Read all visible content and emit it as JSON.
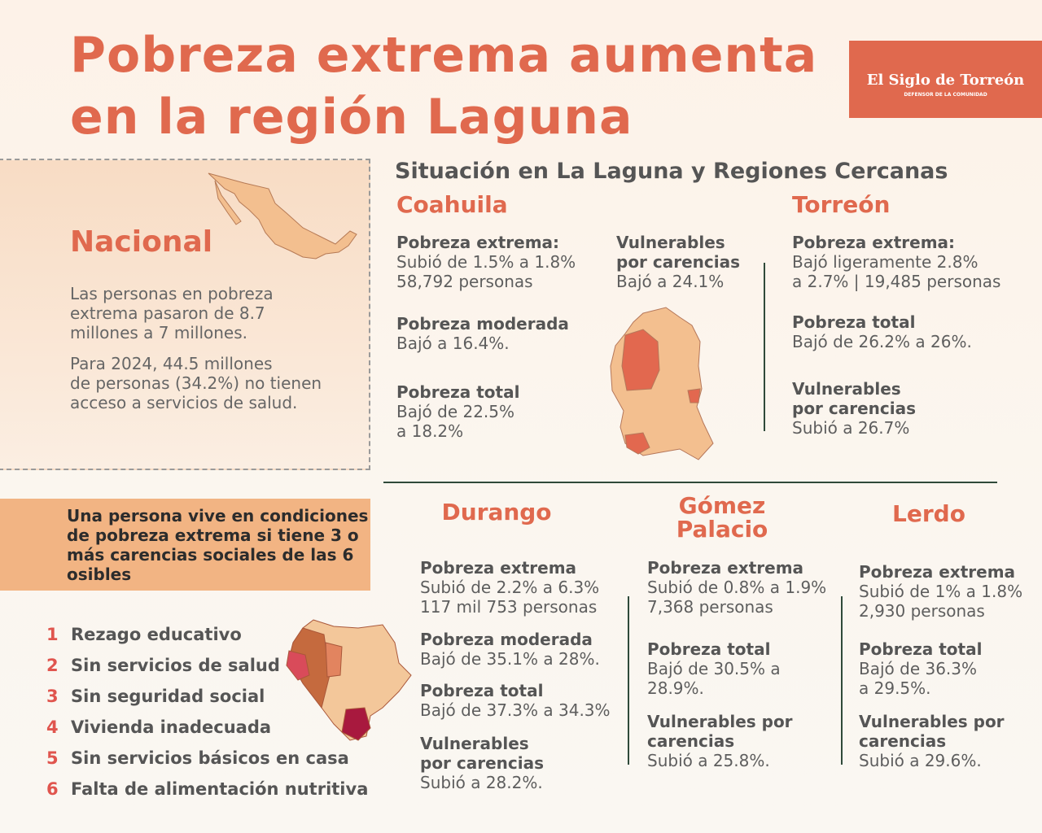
{
  "header": {
    "title": [
      "Pobreza extrema aumenta",
      "en la región Laguna"
    ],
    "logo": "El Siglo de Torreón",
    "logo_tagline": "DEFENSOR DE LA COMUNIDAD"
  },
  "nacional": {
    "title": "Nacional",
    "paragraphs": [
      [
        "Las personas en pobreza",
        "extrema pasaron de 8.7",
        "millones a 7 millones."
      ],
      [
        "Para 2024, 44.5 millones",
        "de personas (34.2%) no tienen",
        "acceso a servicios de salud."
      ]
    ]
  },
  "definition": [
    "Una persona vive en condiciones",
    "de pobreza extrema si tiene 3 o",
    "más carencias sociales de las 6",
    "osibles"
  ],
  "carencias": [
    {
      "number": "1",
      "label": "Rezago educativo"
    },
    {
      "number": "2",
      "label": "Sin servicios de salud"
    },
    {
      "number": "3",
      "label": "Sin seguridad social"
    },
    {
      "number": "4",
      "label": "Vivienda inadecuada"
    },
    {
      "number": "5",
      "label": "Sin servicios básicos en casa"
    },
    {
      "number": "6",
      "label": "Falta de alimentación nutritiva"
    }
  ],
  "section_title": "Situación en La Laguna y Regiones Cercanas",
  "regions": [
    {
      "name": [
        "Coahuila"
      ],
      "items": [
        {
          "title": [
            "Pobreza extrema:"
          ],
          "lines": [
            "Subió de 1.5% a 1.8%",
            "58,792 personas"
          ]
        },
        {
          "title": [
            "Pobreza moderada"
          ],
          "lines": [
            "Bajó a 16.4%."
          ]
        },
        {
          "title": [
            "Pobreza total"
          ],
          "lines": [
            "Bajó de 22.5%",
            "a 18.2%"
          ]
        },
        {
          "title": [
            "Vulnerables",
            "por carencias"
          ],
          "lines": [
            "Bajó a 24.1%"
          ]
        }
      ]
    },
    {
      "name": [
        "Torreón"
      ],
      "items": [
        {
          "title": [
            "Pobreza extrema:"
          ],
          "lines": [
            "Bajó ligeramente 2.8%",
            "a 2.7% | 19,485 personas"
          ]
        },
        {
          "title": [
            "Pobreza total"
          ],
          "lines": [
            "Bajó de 26.2% a 26%."
          ]
        },
        {
          "title": [
            "Vulnerables",
            "por carencias"
          ],
          "lines": [
            "Subió a 26.7%"
          ]
        }
      ]
    },
    {
      "name": [
        "Durango"
      ],
      "items": [
        {
          "title": [
            "Pobreza extrema"
          ],
          "lines": [
            "Subió de 2.2% a 6.3%",
            "117 mil 753 personas"
          ]
        },
        {
          "title": [
            "Pobreza moderada"
          ],
          "lines": [
            "Bajó de 35.1% a 28%."
          ]
        },
        {
          "title": [
            "Pobreza total"
          ],
          "lines": [
            "Bajó de 37.3% a 34.3%"
          ]
        },
        {
          "title": [
            "Vulnerables",
            "por carencias"
          ],
          "lines": [
            "Subió a 28.2%."
          ]
        }
      ]
    },
    {
      "name": [
        "Gómez",
        "Palacio"
      ],
      "items": [
        {
          "title": [
            "Pobreza extrema"
          ],
          "lines": [
            "Subió de 0.8% a 1.9%",
            "7,368 personas"
          ]
        },
        {
          "title": [
            "Pobreza total"
          ],
          "lines": [
            "Bajó de 30.5% a",
            "28.9%."
          ]
        },
        {
          "title": [
            "Vulnerables por",
            "carencias"
          ],
          "lines": [
            "Subió a 25.8%."
          ]
        }
      ]
    },
    {
      "name": [
        "Lerdo"
      ],
      "items": [
        {
          "title": [
            "Pobreza extrema"
          ],
          "lines": [
            "Subió de 1% a 1.8%",
            "2,930 personas"
          ]
        },
        {
          "title": [
            "Pobreza total"
          ],
          "lines": [
            "Bajó de 36.3%",
            "a 29.5%."
          ]
        },
        {
          "title": [
            "Vulnerables por",
            "carencias"
          ],
          "lines": [
            "Subió a 29.6%."
          ]
        }
      ]
    }
  ]
}
